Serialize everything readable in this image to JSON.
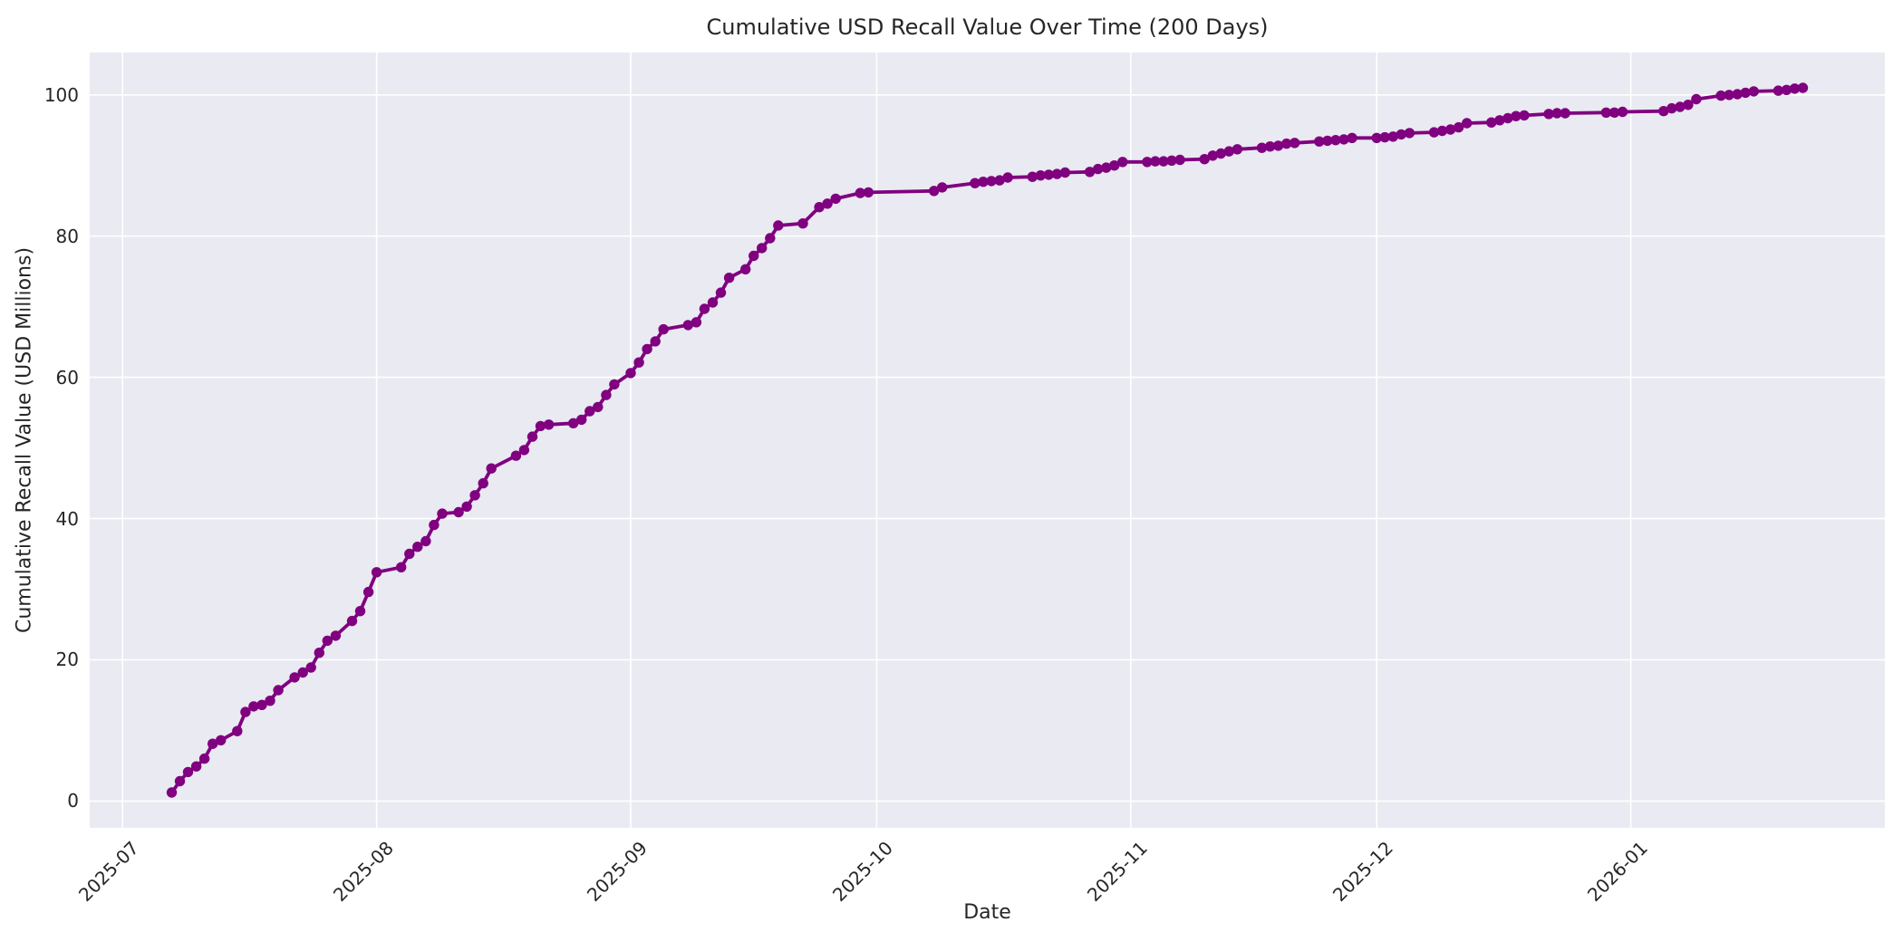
{
  "figure": {
    "title": "Cumulative USD Recall Value Over Time (200 Days)",
    "xlabel": "Date",
    "ylabel": "Cumulative Recall Value (USD Millions)"
  },
  "style": {
    "figure_bg": "#ffffff",
    "plot_bg": "#EAEAF2",
    "grid_color": "#ffffff",
    "line_color": "#800080",
    "marker_color": "#800080",
    "text_color": "#262626"
  },
  "chart_data": {
    "type": "line",
    "title": "Cumulative USD Recall Value Over Time (200 Days)",
    "xlabel": "Date",
    "ylabel": "Cumulative Recall Value (USD Millions)",
    "x_tick_labels": [
      "2025-07",
      "2025-08",
      "2025-09",
      "2025-10",
      "2025-11",
      "2025-12",
      "2026-01"
    ],
    "y_ticks": [
      0,
      20,
      40,
      60,
      80,
      100
    ],
    "xlim": [
      "2025-06-27",
      "2026-02-01"
    ],
    "ylim": [
      -3.8,
      106.0
    ],
    "grid": true,
    "legend_position": "none",
    "span_days": 200,
    "series": [
      {
        "name": "Cumulative Recall Value (USD Millions)",
        "color": "#800080",
        "marker": "o",
        "points": [
          [
            "2025-07-07",
            1.2
          ],
          [
            "2025-07-08",
            2.8
          ],
          [
            "2025-07-09",
            4.1
          ],
          [
            "2025-07-10",
            4.9
          ],
          [
            "2025-07-11",
            6.0
          ],
          [
            "2025-07-12",
            8.1
          ],
          [
            "2025-07-13",
            8.6
          ],
          [
            "2025-07-15",
            9.9
          ],
          [
            "2025-07-16",
            12.6
          ],
          [
            "2025-07-17",
            13.4
          ],
          [
            "2025-07-18",
            13.6
          ],
          [
            "2025-07-19",
            14.2
          ],
          [
            "2025-07-20",
            15.7
          ],
          [
            "2025-07-22",
            17.5
          ],
          [
            "2025-07-23",
            18.2
          ],
          [
            "2025-07-24",
            18.9
          ],
          [
            "2025-07-25",
            21.0
          ],
          [
            "2025-07-26",
            22.7
          ],
          [
            "2025-07-27",
            23.4
          ],
          [
            "2025-07-29",
            25.5
          ],
          [
            "2025-07-30",
            26.9
          ],
          [
            "2025-07-31",
            29.6
          ],
          [
            "2025-08-01",
            32.4
          ],
          [
            "2025-08-04",
            33.1
          ],
          [
            "2025-08-05",
            35.0
          ],
          [
            "2025-08-06",
            36.0
          ],
          [
            "2025-08-07",
            36.8
          ],
          [
            "2025-08-08",
            39.1
          ],
          [
            "2025-08-09",
            40.7
          ],
          [
            "2025-08-11",
            40.9
          ],
          [
            "2025-08-12",
            41.7
          ],
          [
            "2025-08-13",
            43.3
          ],
          [
            "2025-08-14",
            45.0
          ],
          [
            "2025-08-15",
            47.1
          ],
          [
            "2025-08-18",
            48.9
          ],
          [
            "2025-08-19",
            49.7
          ],
          [
            "2025-08-20",
            51.6
          ],
          [
            "2025-08-21",
            53.1
          ],
          [
            "2025-08-22",
            53.3
          ],
          [
            "2025-08-25",
            53.5
          ],
          [
            "2025-08-26",
            54.0
          ],
          [
            "2025-08-27",
            55.2
          ],
          [
            "2025-08-28",
            55.8
          ],
          [
            "2025-08-29",
            57.5
          ],
          [
            "2025-08-30",
            59.0
          ],
          [
            "2025-09-01",
            60.6
          ],
          [
            "2025-09-02",
            62.1
          ],
          [
            "2025-09-03",
            64.0
          ],
          [
            "2025-09-04",
            65.1
          ],
          [
            "2025-09-05",
            66.8
          ],
          [
            "2025-09-08",
            67.4
          ],
          [
            "2025-09-09",
            67.8
          ],
          [
            "2025-09-10",
            69.7
          ],
          [
            "2025-09-11",
            70.6
          ],
          [
            "2025-09-12",
            72.0
          ],
          [
            "2025-09-13",
            74.1
          ],
          [
            "2025-09-15",
            75.3
          ],
          [
            "2025-09-16",
            77.2
          ],
          [
            "2025-09-17",
            78.3
          ],
          [
            "2025-09-18",
            79.7
          ],
          [
            "2025-09-19",
            81.5
          ],
          [
            "2025-09-22",
            81.8
          ],
          [
            "2025-09-24",
            84.1
          ],
          [
            "2025-09-25",
            84.6
          ],
          [
            "2025-09-26",
            85.3
          ],
          [
            "2025-09-29",
            86.1
          ],
          [
            "2025-09-30",
            86.2
          ],
          [
            "2025-10-08",
            86.4
          ],
          [
            "2025-10-09",
            86.9
          ],
          [
            "2025-10-13",
            87.5
          ],
          [
            "2025-10-14",
            87.7
          ],
          [
            "2025-10-15",
            87.8
          ],
          [
            "2025-10-16",
            87.9
          ],
          [
            "2025-10-17",
            88.3
          ],
          [
            "2025-10-20",
            88.4
          ],
          [
            "2025-10-21",
            88.6
          ],
          [
            "2025-10-22",
            88.7
          ],
          [
            "2025-10-23",
            88.8
          ],
          [
            "2025-10-24",
            89.0
          ],
          [
            "2025-10-27",
            89.1
          ],
          [
            "2025-10-28",
            89.5
          ],
          [
            "2025-10-29",
            89.7
          ],
          [
            "2025-10-30",
            90.0
          ],
          [
            "2025-10-31",
            90.5
          ],
          [
            "2025-11-03",
            90.5
          ],
          [
            "2025-11-04",
            90.6
          ],
          [
            "2025-11-05",
            90.6
          ],
          [
            "2025-11-06",
            90.7
          ],
          [
            "2025-11-07",
            90.8
          ],
          [
            "2025-11-10",
            90.9
          ],
          [
            "2025-11-11",
            91.4
          ],
          [
            "2025-11-12",
            91.7
          ],
          [
            "2025-11-13",
            92.0
          ],
          [
            "2025-11-14",
            92.3
          ],
          [
            "2025-11-17",
            92.5
          ],
          [
            "2025-11-18",
            92.7
          ],
          [
            "2025-11-19",
            92.8
          ],
          [
            "2025-11-20",
            93.1
          ],
          [
            "2025-11-21",
            93.2
          ],
          [
            "2025-11-24",
            93.4
          ],
          [
            "2025-11-25",
            93.5
          ],
          [
            "2025-11-26",
            93.6
          ],
          [
            "2025-11-27",
            93.7
          ],
          [
            "2025-11-28",
            93.9
          ],
          [
            "2025-12-01",
            93.9
          ],
          [
            "2025-12-02",
            94.0
          ],
          [
            "2025-12-03",
            94.1
          ],
          [
            "2025-12-04",
            94.4
          ],
          [
            "2025-12-05",
            94.6
          ],
          [
            "2025-12-08",
            94.7
          ],
          [
            "2025-12-09",
            94.9
          ],
          [
            "2025-12-10",
            95.1
          ],
          [
            "2025-12-11",
            95.4
          ],
          [
            "2025-12-12",
            96.0
          ],
          [
            "2025-12-15",
            96.1
          ],
          [
            "2025-12-16",
            96.4
          ],
          [
            "2025-12-17",
            96.7
          ],
          [
            "2025-12-18",
            97.0
          ],
          [
            "2025-12-19",
            97.1
          ],
          [
            "2025-12-22",
            97.3
          ],
          [
            "2025-12-23",
            97.4
          ],
          [
            "2025-12-24",
            97.4
          ],
          [
            "2025-12-29",
            97.5
          ],
          [
            "2025-12-30",
            97.5
          ],
          [
            "2025-12-31",
            97.6
          ],
          [
            "2026-01-05",
            97.7
          ],
          [
            "2026-01-06",
            98.1
          ],
          [
            "2026-01-07",
            98.3
          ],
          [
            "2026-01-08",
            98.6
          ],
          [
            "2026-01-09",
            99.4
          ],
          [
            "2026-01-12",
            99.9
          ],
          [
            "2026-01-13",
            100.0
          ],
          [
            "2026-01-14",
            100.1
          ],
          [
            "2026-01-15",
            100.3
          ],
          [
            "2026-01-16",
            100.5
          ],
          [
            "2026-01-19",
            100.6
          ],
          [
            "2026-01-20",
            100.7
          ],
          [
            "2026-01-21",
            100.9
          ],
          [
            "2026-01-22",
            101.0
          ]
        ]
      }
    ]
  }
}
